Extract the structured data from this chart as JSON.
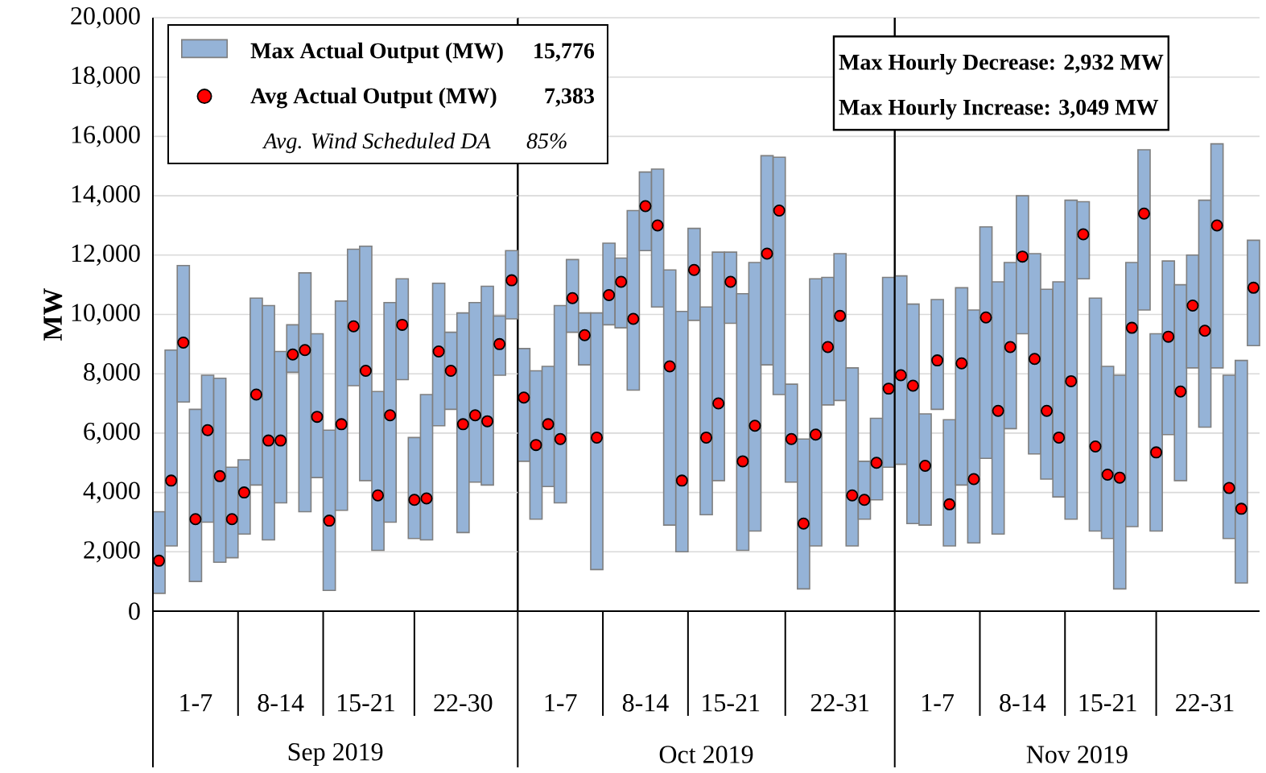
{
  "chart_data": [
    {
      "type": "bar",
      "ylabel": "MW",
      "xlabel": "Sep 2019",
      "categories": [
        null,
        null,
        null,
        "1-7",
        null,
        null,
        null,
        null,
        null,
        null,
        "8-14",
        null,
        null,
        null,
        null,
        null,
        null,
        "15-21",
        null,
        null,
        null,
        null,
        null,
        null,
        null,
        "22-30",
        null,
        null,
        null,
        null
      ],
      "series": [
        {
          "name": "Max Actual Output (MW)",
          "color": "#95b3d7",
          "base": [
            600,
            2200,
            7050,
            1000,
            3000,
            1650,
            1800,
            2600,
            4250,
            2400,
            3650,
            8050,
            3350,
            4500,
            700,
            3400,
            7600,
            4400,
            2050,
            3000,
            7800,
            2450,
            2400,
            6250,
            6800,
            2650,
            4350,
            4250,
            7950,
            9850
          ],
          "values": [
            2750,
            6600,
            4600,
            5800,
            4950,
            6200,
            3050,
            2500,
            6300,
            7900,
            5100,
            1600,
            8050,
            4850,
            5400,
            7050,
            4600,
            7900,
            5350,
            7400,
            3400,
            3400,
            4900,
            4800,
            2600,
            7400,
            6050,
            6700,
            2000,
            2300
          ]
        },
        {
          "name": "Avg Actual Output (MW)",
          "type": "scatter",
          "color": "#ff0000",
          "marker": "circle",
          "values": [
            1700,
            4400,
            9050,
            3100,
            6100,
            4550,
            3100,
            4000,
            7300,
            5750,
            5750,
            8650,
            8800,
            6550,
            3050,
            6300,
            9600,
            8100,
            3900,
            6600,
            9650,
            3750,
            3800,
            8750,
            8100,
            6300,
            6600,
            6400,
            9000,
            11150
          ]
        }
      ],
      "ylim": [
        0,
        20000
      ],
      "yticks": [
        0,
        {
          "value": 2000,
          "label": "2,000"
        },
        {
          "value": 4000,
          "label": "4,000"
        },
        {
          "value": 6000,
          "label": "6,000"
        },
        {
          "value": 8000,
          "label": "8,000"
        },
        {
          "value": 10000,
          "label": "10,000"
        },
        {
          "value": 12000,
          "label": "12,000"
        },
        {
          "value": 14000,
          "label": "14,000"
        },
        {
          "value": 16000,
          "label": "16,000"
        },
        {
          "value": 18000,
          "label": "18,000"
        },
        {
          "value": 20000,
          "label": "20,000"
        }
      ],
      "annotations": [
        "15,776",
        "7,383",
        "Avg. Wind Scheduled DA",
        "85%"
      ],
      "grid": "y",
      "legend": "top left"
    },
    {
      "type": "bar",
      "xlabel": "Oct 2019",
      "categories": [
        null,
        null,
        null,
        "1-7",
        null,
        null,
        null,
        null,
        null,
        null,
        "8-14",
        null,
        null,
        null,
        null,
        null,
        null,
        "15-21",
        null,
        null,
        null,
        null,
        null,
        null,
        null,
        null,
        "22-31",
        null,
        null,
        null,
        null
      ],
      "series": [
        {
          "color": "#95b3d7",
          "base": [
            5050,
            3100,
            4200,
            3650,
            9400,
            8300,
            1400,
            9650,
            9550,
            7450,
            12150,
            10250,
            2900,
            2000,
            9800,
            3250,
            4400,
            9700,
            2050,
            2700,
            8300,
            7300,
            4350,
            750,
            2200,
            6950,
            7100,
            2200,
            3100,
            3750,
            4850
          ],
          "values": [
            3800,
            5000,
            4050,
            6650,
            2450,
            1750,
            8650,
            2750,
            2350,
            6050,
            2650,
            4650,
            8600,
            8100,
            3100,
            7000,
            7700,
            2400,
            8650,
            9050,
            7050,
            8000,
            3300,
            5050,
            9000,
            4300,
            4950,
            6000,
            1950,
            2750,
            6400
          ]
        },
        {
          "type": "scatter",
          "color": "#ff0000",
          "marker": "circle",
          "values": [
            7200,
            5600,
            6300,
            5800,
            10550,
            9300,
            5850,
            10650,
            11100,
            9850,
            13650,
            13000,
            8250,
            4400,
            11500,
            5850,
            7000,
            11100,
            5050,
            6250,
            12050,
            13500,
            5800,
            2950,
            5950,
            8900,
            9950,
            3900,
            3750,
            5000,
            7500
          ]
        }
      ],
      "ylim": [
        0,
        20000
      ],
      "yticks": [
        0,
        2000,
        4000,
        6000,
        8000,
        10000,
        12000,
        14000,
        16000,
        18000,
        20000
      ],
      "tick_labels": "x",
      "grid": "y"
    },
    {
      "type": "bar",
      "xlabel": "Nov 2019",
      "categories": [
        null,
        null,
        null,
        "1-7",
        null,
        null,
        null,
        null,
        null,
        null,
        "8-14",
        null,
        null,
        null,
        null,
        null,
        null,
        "15-21",
        null,
        null,
        null,
        null,
        null,
        null,
        null,
        "22-31",
        null,
        null,
        null,
        null
      ],
      "series": [
        {
          "color": "#95b3d7",
          "base": [
            4950,
            2950,
            2900,
            6800,
            2200,
            4250,
            2300,
            5150,
            2600,
            6150,
            9350,
            5300,
            4450,
            3850,
            3100,
            11200,
            2700,
            2450,
            750,
            2850,
            10150,
            2700,
            5950,
            4400,
            8200,
            6200,
            8200,
            2450,
            950,
            8950
          ],
          "values": [
            6350,
            7400,
            3750,
            3700,
            4250,
            6650,
            7850,
            7800,
            8500,
            5600,
            4650,
            6750,
            6400,
            7250,
            10750,
            2600,
            7850,
            5800,
            7200,
            8900,
            5400,
            6650,
            5850,
            6600,
            3800,
            7650,
            7550,
            5500,
            7500,
            3550
          ]
        },
        {
          "type": "scatter",
          "color": "#ff0000",
          "marker": "circle",
          "values": [
            7950,
            7600,
            4900,
            8450,
            3600,
            8350,
            4450,
            9900,
            6750,
            8900,
            11950,
            8500,
            6750,
            5850,
            7750,
            12700,
            5550,
            4600,
            4500,
            9550,
            13400,
            5350,
            9250,
            7400,
            10300,
            9450,
            13000,
            4150,
            3450,
            10900
          ]
        }
      ],
      "ylim": [
        0,
        20000
      ],
      "yticks": [
        0,
        2000,
        4000,
        6000,
        8000,
        10000,
        12000,
        14000,
        16000,
        18000,
        20000
      ],
      "annotations": [
        "Max Hourly Decrease: 2,932 MW",
        "Max Hourly Increase:  3,049 MW"
      ],
      "tick_labels": "x",
      "grid": "y"
    }
  ]
}
